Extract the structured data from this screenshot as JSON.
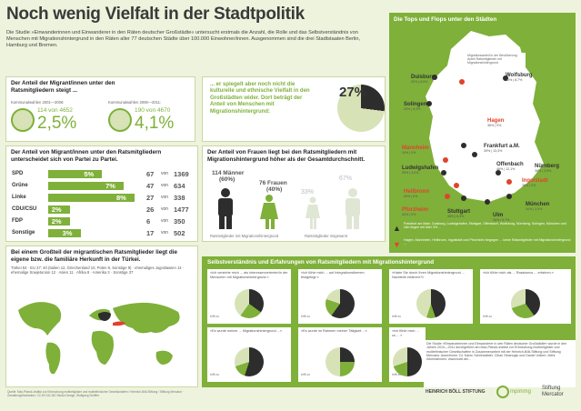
{
  "title": "Noch wenig Vielfalt in der Stadtpolitik",
  "intro": "Die Studie »Einwanderinnen und Einwanderer in den Räten deutscher Großstädte« untersucht erstmals die Anzahl, die Rolle und das Selbstverständnis von Menschen mit Migrationshintergrund in den Räten aller 77 deutschen Städte über 100.000 Einwohner/innen. Ausgenommen sind die drei Stadtstaaten Berlin, Hamburg und Bremen.",
  "share": {
    "heading": "Der Anteil der Migrant/innen unter den Ratsmitgliedern steigt ...",
    "period1": "Kommunalwahlen 2001—2006:",
    "period2": "Kommunalwahlen 2006—2011:",
    "count1": "114 von 4652",
    "pct1": "2,5%",
    "count2": "190 von 4670",
    "pct2": "4,1%"
  },
  "mirror": {
    "text": "... er spiegelt aber noch nicht die kulturelle und ethnische Vielfalt in den Großstädten wider. Dort beträgt der Anteil von Menschen mit Migrationshintergrund:",
    "pct": "27%",
    "fraction": 0.27
  },
  "parties": {
    "heading": "Der Anteil von Migrant/innen unter den Ratsmitgliedern unterscheidet sich von Partei zu Partei.",
    "rows": [
      {
        "party": "SPD",
        "pct": "5%",
        "count": "67",
        "von": "von",
        "total": "1369",
        "value": 5
      },
      {
        "party": "Grüne",
        "pct": "7%",
        "count": "47",
        "von": "von",
        "total": "634",
        "value": 7
      },
      {
        "party": "Linke",
        "pct": "8%",
        "count": "27",
        "von": "von",
        "total": "338",
        "value": 8
      },
      {
        "party": "CDU/CSU",
        "pct": "2%",
        "count": "26",
        "von": "von",
        "total": "1477",
        "value": 2
      },
      {
        "party": "FDP",
        "pct": "2%",
        "count": "6",
        "von": "von",
        "total": "350",
        "value": 2
      },
      {
        "party": "Sonstige",
        "pct": "3%",
        "count": "17",
        "von": "von",
        "total": "502",
        "value": 3
      }
    ]
  },
  "women": {
    "heading": "Der Anteil von Frauen liegt bei den Ratsmitgliedern mit Migrationshintergrund höher als der Gesamtdurchschnitt.",
    "men": "114 Männer",
    "men_pct": "(60%)",
    "women": "76 Frauen",
    "women_pct": "(40%)",
    "total_women": "33%",
    "total_men": "67%",
    "label1": "Ratsmitglieder mit Migrationshintergrund",
    "label2": "Ratsmitglieder insgesamt"
  },
  "origin": {
    "heading": "Bei einem Großteil der migrantischen Ratsmitglieder liegt die eigene bzw. die familiäre Herkunft in der Türkei.",
    "list": "Türkei 54 · EU 27: 40 (Italien 12, Griechenland 10, Polen 9, Sonstige 9) · ehemaliges Jugoslawien 14 · ehemalige Sowjetunion 12 · Asien 11 · Afrika 8 · Amerika 3 · Sonstige 37"
  },
  "map": {
    "heading": "Die Tops und Flops unter den Städten",
    "cities": [
      {
        "name": "Duisburg",
        "val": "20% | 8,5%"
      },
      {
        "name": "Wolfsburg",
        "val": "30% | 8,7%"
      },
      {
        "name": "Hagen",
        "val": "36% | 0%"
      },
      {
        "name": "Solingen",
        "val": "33% | 8,3%"
      },
      {
        "name": "Frankfurt a.M.",
        "val": "39% | 13,3%"
      },
      {
        "name": "Offenbach",
        "val": "46% | 12,1%"
      },
      {
        "name": "Mannheim",
        "val": "34% | 0%"
      },
      {
        "name": "Ludwigshafen",
        "val": "35% | 3,0%"
      },
      {
        "name": "Nürnberg",
        "val": "36% | 3,9%"
      },
      {
        "name": "Ingolstadt",
        "val": "36% | 0%"
      },
      {
        "name": "Heilbronn",
        "val": "40% | 0%"
      },
      {
        "name": "Pforzheim",
        "val": "43% | 0%"
      },
      {
        "name": "Stuttgart",
        "val": "38% | 8,3%"
      },
      {
        "name": "Ulm",
        "val": "35% | 5,7%"
      },
      {
        "name": "München",
        "val": "34% | 3,5%"
      }
    ],
    "legend1": "Migrationsanteil in der Bevölkerung",
    "legend2": "Anteil Ratsmitglieder mit Migrationshintergrund",
    "note_up": "Frankfurt am Main, Duisburg, Ludwigshafen, Stuttgart, Offenbach, Wolfsburg, Nürnberg, Solingen, München und Ulm liegen mit über 3% ...",
    "note_down": "Hagen, Mannheim, Heilbronn, Ingolstadt und Pforzheim hingegen ... keine Ratsmitglieder mit Migrationshintergrund ..."
  },
  "survey": {
    "heading": "Selbstverständnis und Erfahrungen von Ratsmitgliedern mit Migrationshintergrund",
    "q1": "»Ich verstehe mich ... als Interessenvertreter/in der Menschen mit Migrationshintergrund.«",
    "q2": "»Ich fühle mich ... auf Integrationsthemen festgelegt.«",
    "q3": "»Habe Sie durch Ihren Migrationshintergrund ... Nachteile erfahren?«",
    "q4": "»Ich fühle mich als ... Rassismus ... erfahren.«",
    "q5": "»Es wurde meiner ... Migrationshintergrund ...«",
    "q6": "»Es wurde im Rahmen meiner Tätigkeit ...«",
    "q7": "»Ich fühle mich ... zu ... «",
    "q8": "»Hat ... Partei ... «",
    "answer_yes": "trifft zu",
    "answer_no": "trifft nicht zu",
    "answer_partly": "teilweise"
  },
  "footer": {
    "studyinfo": "Die Studie »Einwanderinnen und Einwanderer in den Räten deutscher Großstädte« wurde in den Jahren 2010—2011 durchgeführt am Max-Planck-Institut zur Erforschung multireligiöser und multiethnischer Gesellschaften in Zusammenarbeit mit der Heinrich-Böll-Stiftung und Stiftung Mercator. Autor/innen: Dr. Karen Schönwälder, Cihan Sinanoglu und Daniel Volkert. Mehr Informationen: www.boell.de/...",
    "source": "Quelle: Max-Planck-Institut zur Erforschung multireligiöser und multiethnischer Gesellschaften / Heinrich-Böll-Stiftung / Stiftung Mercator · Gestaltung/Illustration: CC-BY-NC-ND Studio Design, Wolfgang Schiffer",
    "logo1": "HEINRICH BÖLL STIFTUNG",
    "logo2": "mpimmg",
    "logo3a": "Stiftung",
    "logo3b": "Mercator"
  },
  "colors": {
    "green": "#7fb03a",
    "dark": "#2d2d2d",
    "red": "#e0432d",
    "light": "#d7e3b6"
  }
}
